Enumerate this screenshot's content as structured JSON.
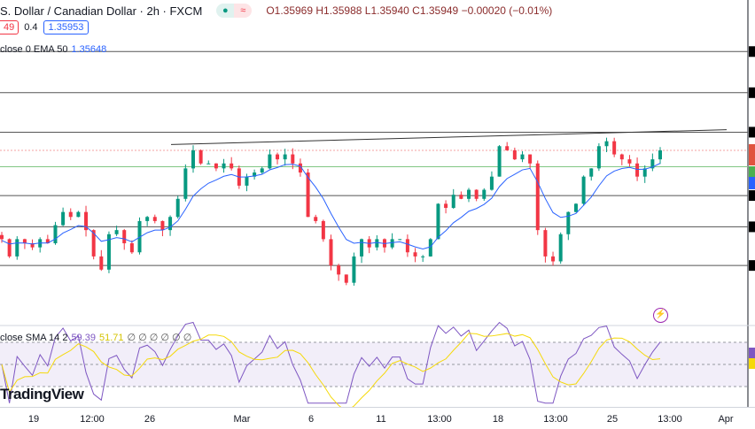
{
  "header": {
    "title": "S. Dollar / Canadian Dollar · 2h · FXCM",
    "open": "O1.35969",
    "high": "H1.35988",
    "low": "L1.35940",
    "close": "C1.35949",
    "change": "−0.00020 (−0.01%)",
    "market_status_icon": "green-dot",
    "delay_icon": "approx-icon"
  },
  "quote": {
    "sell": "49",
    "spread": "0.4",
    "buy": "1.35953"
  },
  "ema": {
    "label": "close 0 EMA 50",
    "value": "1.35648"
  },
  "rsi": {
    "label": "close SMA 14 2",
    "value": "59.39",
    "sma": "51.71",
    "extras": "∅ ∅ ∅ ∅ ∅ ∅"
  },
  "logo": "TradingView",
  "xaxis": [
    "19",
    "12:00",
    "26",
    "Mar",
    "6",
    "11",
    "13:00",
    "18",
    "13:00",
    "25",
    "13:00",
    "Apr"
  ],
  "colors": {
    "up": "#089981",
    "down": "#f23645",
    "ema": "#2962ff",
    "rsi": "#7e57c2",
    "rsi_sma": "#f5d90a",
    "level": "#131722",
    "support": "#4caf50"
  },
  "chart_data": {
    "type": "candlestick",
    "closes": [
      1.3487,
      1.3466,
      1.3487,
      1.3482,
      1.3477,
      1.3487,
      1.3482,
      1.3504,
      1.352,
      1.3514,
      1.352,
      1.3498,
      1.3466,
      1.345,
      1.3493,
      1.3498,
      1.3482,
      1.3471,
      1.3509,
      1.3514,
      1.3509,
      1.3498,
      1.3514,
      1.3536,
      1.3573,
      1.3595,
      1.3579,
      1.3579,
      1.3573,
      1.3579,
      1.3573,
      1.3552,
      1.3563,
      1.3568,
      1.3573,
      1.359,
      1.3584,
      1.359,
      1.3579,
      1.3568,
      1.3514,
      1.3509,
      1.3487,
      1.3455,
      1.3444,
      1.3434,
      1.3466,
      1.3487,
      1.3477,
      1.3487,
      1.3477,
      1.3487,
      1.3487,
      1.3471,
      1.3466,
      1.3466,
      1.3487,
      1.353,
      1.3525,
      1.3541,
      1.3536,
      1.3547,
      1.3536,
      1.3547,
      1.3563,
      1.36,
      1.3595,
      1.3584,
      1.359,
      1.3579,
      1.3498,
      1.3466,
      1.346,
      1.3493,
      1.352,
      1.353,
      1.3563,
      1.3573,
      1.36,
      1.3606,
      1.359,
      1.3584,
      1.3579,
      1.3563,
      1.3573,
      1.3584,
      1.35949
    ],
    "levels": [
      1.3715,
      1.3665,
      1.3617,
      1.354,
      1.3502,
      1.3455
    ],
    "support_level": 1.3575,
    "trendline": [
      1.3602,
      1.362
    ],
    "rsi_bands": [
      70,
      50,
      30
    ]
  }
}
